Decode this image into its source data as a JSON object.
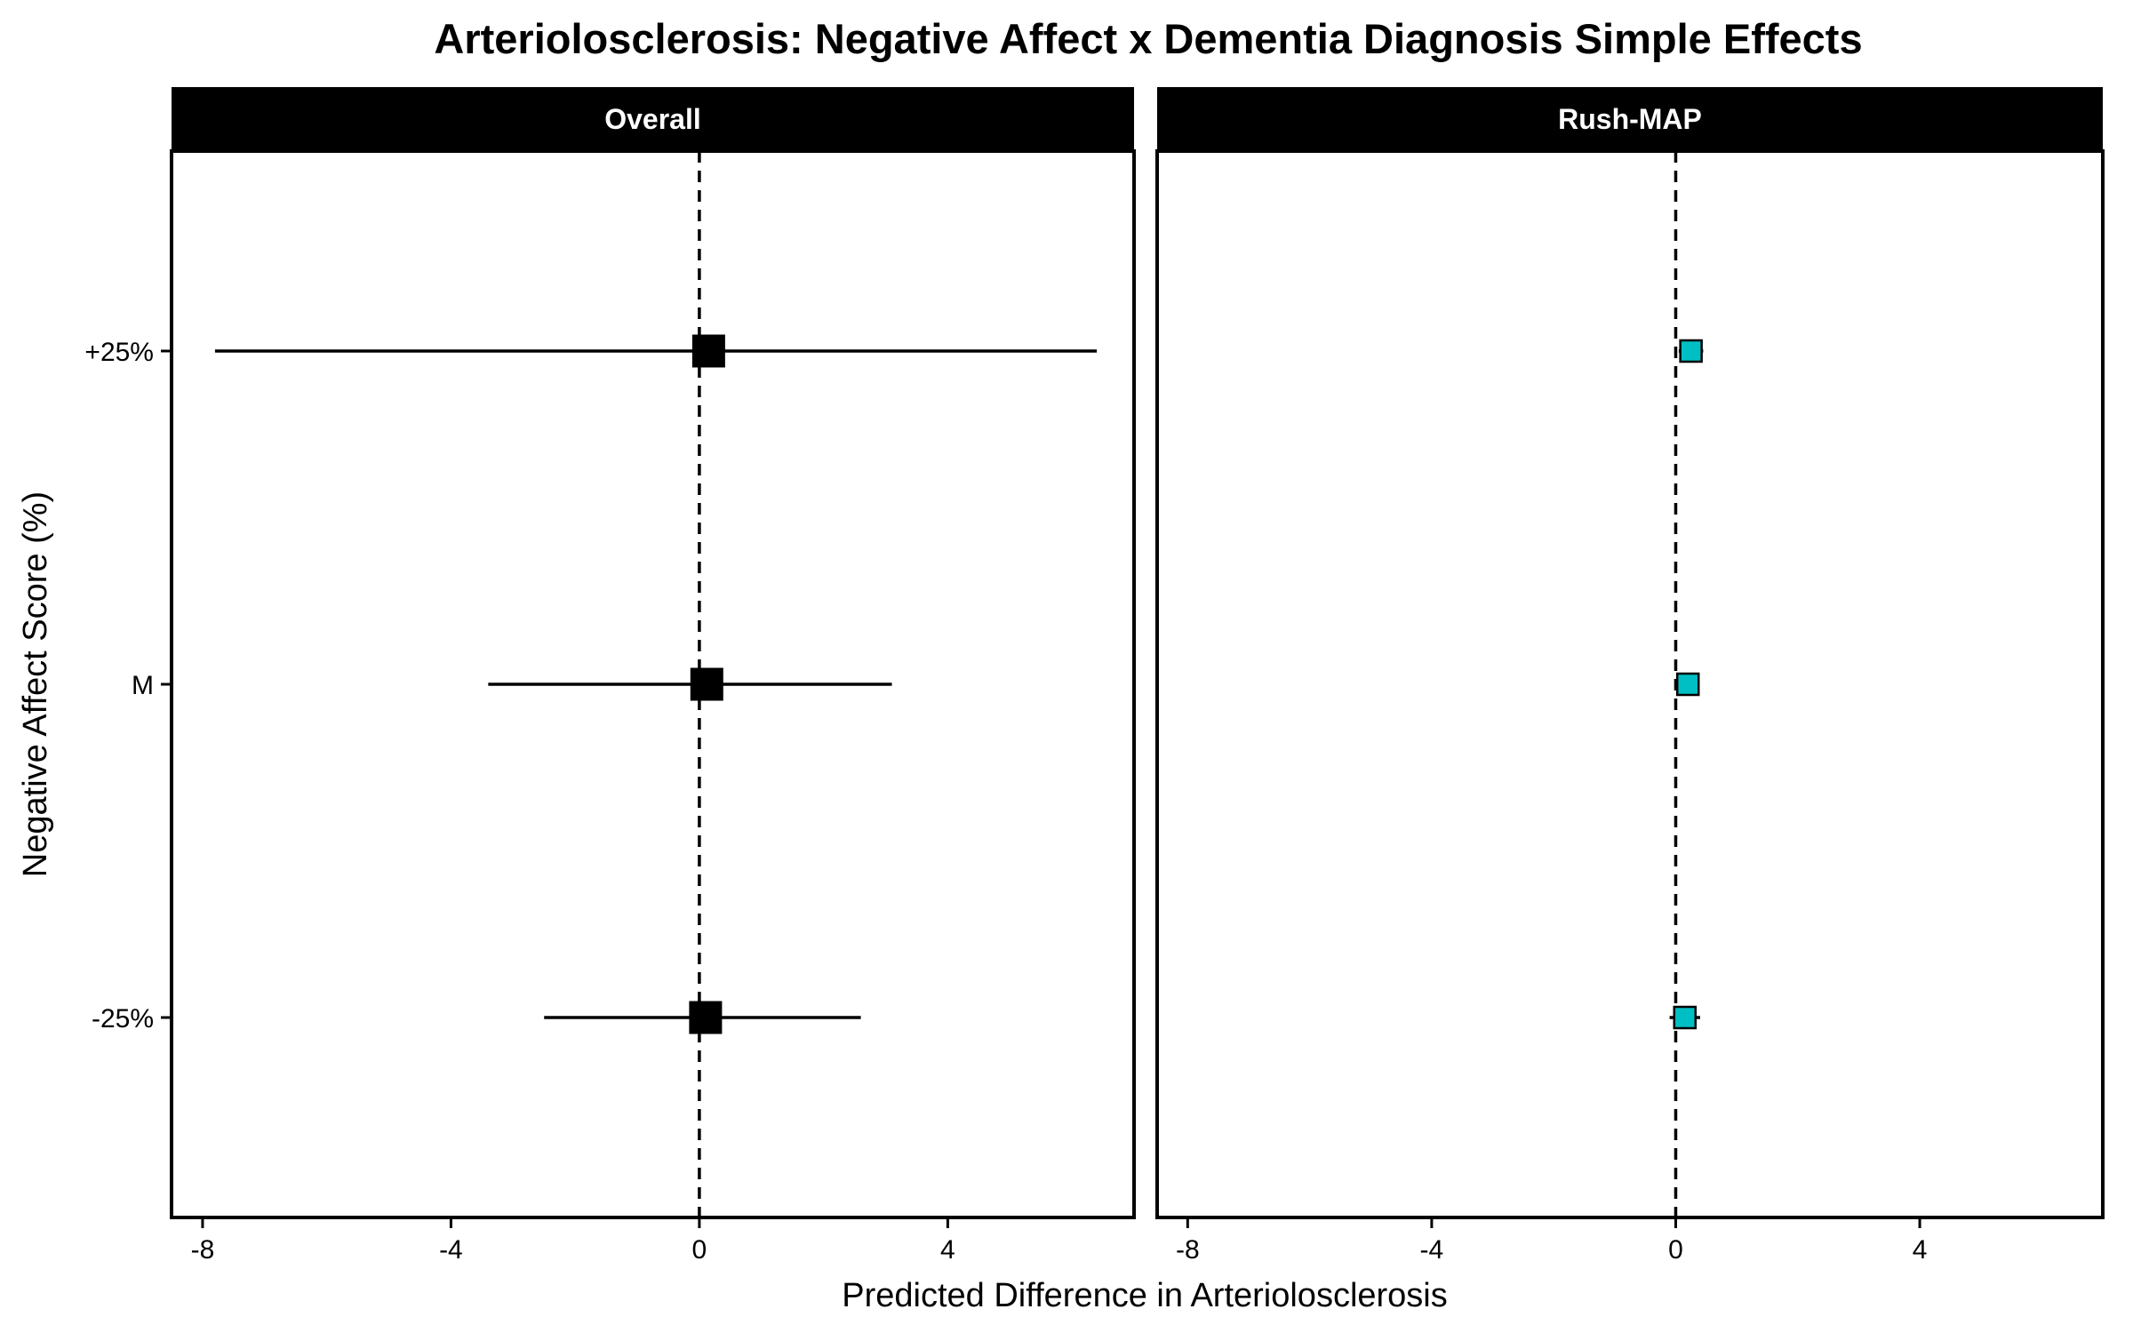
{
  "chart_data": {
    "type": "scatter",
    "title": "Arteriolosclerosis: Negative Affect x Dementia Diagnosis Simple Effects",
    "xlabel": "Predicted Difference in Arteriolosclerosis",
    "ylabel": "Negative Affect Score (%)",
    "categories": [
      "-25%",
      "M",
      "+25%"
    ],
    "x_ticks": [
      "-8",
      "-4",
      "0",
      "4"
    ],
    "xlim": [
      -8.5,
      7
    ],
    "reference_line": 0,
    "grid": false,
    "legend": "none",
    "panels": [
      {
        "name": "Overall",
        "point_color": "#000000",
        "points": [
          {
            "category": "+25%",
            "estimate": 0.15,
            "lower": -7.8,
            "upper": 6.4
          },
          {
            "category": "M",
            "estimate": 0.12,
            "lower": -3.4,
            "upper": 3.1
          },
          {
            "category": "-25%",
            "estimate": 0.1,
            "lower": -2.5,
            "upper": 2.6
          }
        ]
      },
      {
        "name": "Rush-MAP",
        "point_color": "#00BFC4",
        "points": [
          {
            "category": "+25%",
            "estimate": 0.25,
            "lower": 0.05,
            "upper": 0.45
          },
          {
            "category": "M",
            "estimate": 0.2,
            "lower": 0.05,
            "upper": 0.35
          },
          {
            "category": "-25%",
            "estimate": 0.15,
            "lower": -0.1,
            "upper": 0.4
          }
        ]
      }
    ]
  }
}
